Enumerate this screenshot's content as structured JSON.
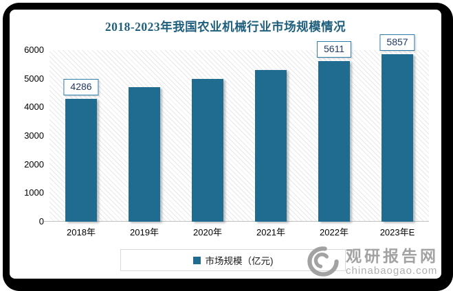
{
  "chart_data": {
    "type": "bar",
    "title": "2018-2023年我国农业机械行业市场规模情况",
    "categories": [
      "2018年",
      "2019年",
      "2020年",
      "2021年",
      "2022年",
      "2023年E"
    ],
    "values": [
      4286,
      4700,
      5000,
      5310,
      5611,
      5857
    ],
    "data_labels": [
      {
        "index": 0,
        "text": "4286"
      },
      {
        "index": 4,
        "text": "5611"
      },
      {
        "index": 5,
        "text": "5857"
      }
    ],
    "ylim": [
      0,
      6000
    ],
    "yticks": [
      0,
      1000,
      2000,
      3000,
      4000,
      5000,
      6000
    ],
    "xlabel": "",
    "ylabel": "",
    "grid": false,
    "legend": [
      "市场规模（亿元)"
    ],
    "legend_position": "bottom-center",
    "bar_color": "#1F6C90"
  },
  "watermark": {
    "site_name": "观研报告网",
    "domain": "chinabaogao.com"
  },
  "colors": {
    "title": "#1E5F7E",
    "bar": "#1F6C90",
    "data_label_text": "#1F3864",
    "data_label_border": "#2B7BA8",
    "axis_line": "#BFBFBF",
    "tick_text": "#000000",
    "legend_border": "#D9D9D9",
    "legend_text": "#1A1A1A",
    "watermark_gray": "#9B9B9B",
    "watermark_domain_gray": "#A8A8A8",
    "frame_black": "#000000"
  }
}
